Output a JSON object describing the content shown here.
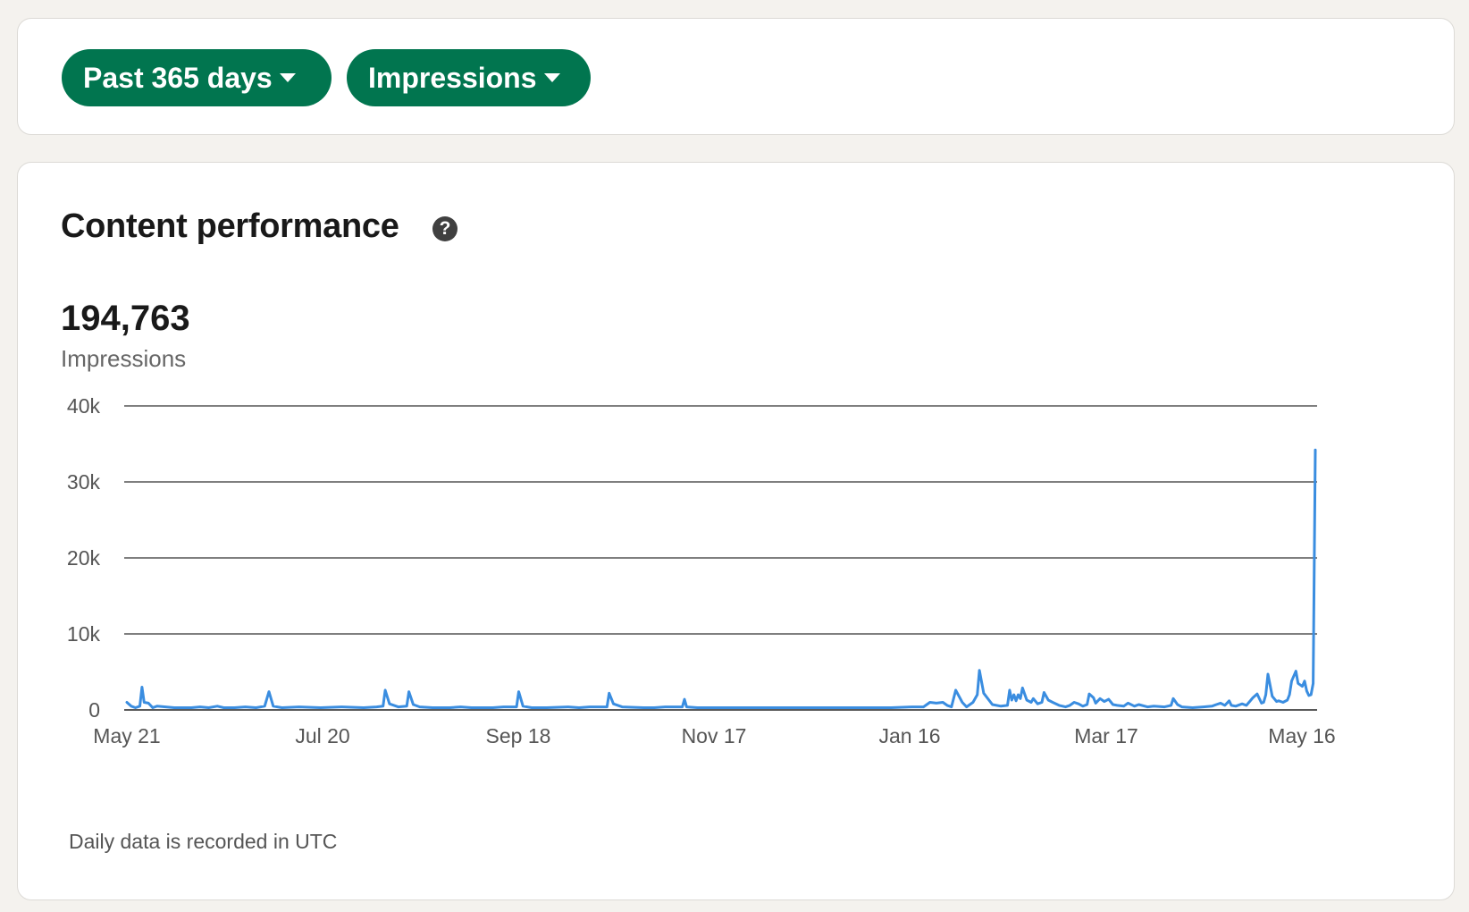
{
  "filters": {
    "range_label": "Past 365 days",
    "metric_label": "Impressions"
  },
  "card": {
    "title": "Content performance",
    "help_glyph": "?",
    "total_value": "194,763",
    "total_label": "Impressions",
    "footnote": "Daily data is recorded in UTC"
  },
  "colors": {
    "accent_green": "#01754f",
    "line_blue": "#3a8de0"
  },
  "icons": {
    "caret": "caret-down-icon",
    "help": "help-circle-icon"
  },
  "chart_data": {
    "type": "line",
    "x_tick_labels": [
      "May 21",
      "Jul 20",
      "Sep 18",
      "Nov 17",
      "Jan 16",
      "Mar 17",
      "May 16"
    ],
    "y_tick_labels": [
      "0",
      "10k",
      "20k",
      "30k",
      "40k"
    ],
    "ylim": [
      0,
      40000
    ],
    "grid": true,
    "series": [
      {
        "points": [
          [
            0,
            1000
          ],
          [
            2,
            500
          ],
          [
            4,
            300
          ],
          [
            6,
            500
          ],
          [
            7,
            3000
          ],
          [
            8,
            1000
          ],
          [
            10,
            900
          ],
          [
            12,
            300
          ],
          [
            14,
            500
          ],
          [
            18,
            400
          ],
          [
            22,
            300
          ],
          [
            30,
            300
          ],
          [
            34,
            400
          ],
          [
            38,
            300
          ],
          [
            42,
            500
          ],
          [
            45,
            300
          ],
          [
            50,
            300
          ],
          [
            55,
            400
          ],
          [
            60,
            300
          ],
          [
            64,
            500
          ],
          [
            66,
            2400
          ],
          [
            68,
            500
          ],
          [
            72,
            300
          ],
          [
            80,
            400
          ],
          [
            90,
            300
          ],
          [
            100,
            400
          ],
          [
            110,
            300
          ],
          [
            116,
            400
          ],
          [
            119,
            500
          ],
          [
            120,
            2600
          ],
          [
            122,
            800
          ],
          [
            126,
            400
          ],
          [
            130,
            500
          ],
          [
            131,
            2400
          ],
          [
            133,
            700
          ],
          [
            136,
            400
          ],
          [
            142,
            300
          ],
          [
            150,
            300
          ],
          [
            155,
            400
          ],
          [
            160,
            300
          ],
          [
            170,
            300
          ],
          [
            175,
            400
          ],
          [
            181,
            400
          ],
          [
            182,
            2400
          ],
          [
            184,
            500
          ],
          [
            188,
            300
          ],
          [
            195,
            300
          ],
          [
            205,
            400
          ],
          [
            210,
            300
          ],
          [
            215,
            400
          ],
          [
            223,
            400
          ],
          [
            224,
            2200
          ],
          [
            226,
            800
          ],
          [
            230,
            400
          ],
          [
            240,
            300
          ],
          [
            245,
            300
          ],
          [
            250,
            400
          ],
          [
            258,
            400
          ],
          [
            259,
            1400
          ],
          [
            260,
            400
          ],
          [
            265,
            300
          ],
          [
            275,
            300
          ],
          [
            285,
            300
          ],
          [
            295,
            300
          ],
          [
            305,
            300
          ],
          [
            315,
            300
          ],
          [
            330,
            300
          ],
          [
            345,
            300
          ],
          [
            355,
            300
          ],
          [
            365,
            400
          ],
          [
            370,
            400
          ],
          [
            373,
            1000
          ],
          [
            376,
            900
          ],
          [
            379,
            1000
          ],
          [
            381,
            600
          ],
          [
            383,
            400
          ],
          [
            385,
            2600
          ],
          [
            388,
            1000
          ],
          [
            390,
            400
          ],
          [
            393,
            1000
          ],
          [
            395,
            2000
          ],
          [
            396,
            5200
          ],
          [
            398,
            2200
          ],
          [
            402,
            700
          ],
          [
            406,
            500
          ],
          [
            409,
            600
          ],
          [
            410,
            2600
          ],
          [
            411,
            1300
          ],
          [
            412,
            2000
          ],
          [
            413,
            1200
          ],
          [
            414,
            2000
          ],
          [
            415,
            1500
          ],
          [
            416,
            2900
          ],
          [
            418,
            1300
          ],
          [
            420,
            1000
          ],
          [
            421,
            1500
          ],
          [
            423,
            800
          ],
          [
            425,
            1000
          ],
          [
            426,
            2300
          ],
          [
            428,
            1300
          ],
          [
            430,
            1000
          ],
          [
            433,
            600
          ],
          [
            436,
            400
          ],
          [
            438,
            600
          ],
          [
            440,
            1000
          ],
          [
            442,
            800
          ],
          [
            444,
            500
          ],
          [
            446,
            700
          ],
          [
            447,
            2100
          ],
          [
            449,
            1600
          ],
          [
            450,
            900
          ],
          [
            452,
            1500
          ],
          [
            454,
            1100
          ],
          [
            456,
            1400
          ],
          [
            458,
            700
          ],
          [
            460,
            600
          ],
          [
            463,
            500
          ],
          [
            465,
            900
          ],
          [
            468,
            500
          ],
          [
            470,
            700
          ],
          [
            474,
            400
          ],
          [
            477,
            500
          ],
          [
            482,
            400
          ],
          [
            485,
            600
          ],
          [
            486,
            1500
          ],
          [
            488,
            700
          ],
          [
            490,
            400
          ],
          [
            495,
            300
          ],
          [
            500,
            400
          ],
          [
            504,
            500
          ],
          [
            506,
            700
          ],
          [
            508,
            900
          ],
          [
            510,
            600
          ],
          [
            512,
            1200
          ],
          [
            513,
            600
          ],
          [
            515,
            500
          ],
          [
            518,
            800
          ],
          [
            520,
            600
          ],
          [
            523,
            1600
          ],
          [
            525,
            2100
          ],
          [
            527,
            900
          ],
          [
            528,
            1000
          ],
          [
            529,
            2000
          ],
          [
            530,
            4700
          ],
          [
            532,
            1800
          ],
          [
            534,
            1100
          ],
          [
            535,
            1200
          ],
          [
            537,
            1000
          ],
          [
            539,
            1300
          ],
          [
            540,
            2000
          ],
          [
            541,
            3800
          ],
          [
            543,
            5100
          ],
          [
            544,
            3500
          ],
          [
            546,
            3100
          ],
          [
            547,
            3800
          ],
          [
            548,
            2500
          ],
          [
            549,
            1900
          ],
          [
            550,
            2000
          ],
          [
            551,
            3500
          ],
          [
            552,
            34200
          ]
        ]
      }
    ]
  }
}
